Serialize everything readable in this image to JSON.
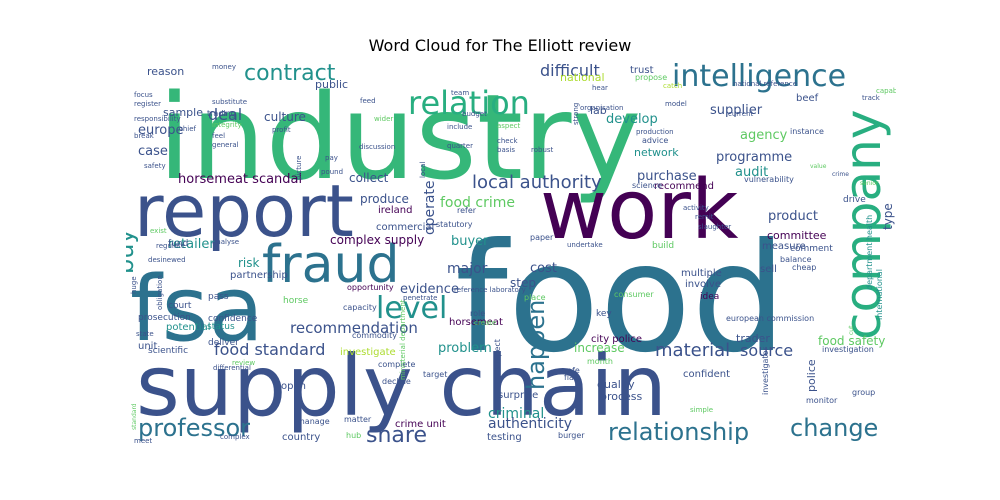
{
  "chart_data": {
    "type": "wordcloud",
    "title": "Word Cloud for The Elliott review",
    "palette": [
      "#440154",
      "#3b528b",
      "#2c728e",
      "#21918c",
      "#28ae80",
      "#5ec962",
      "#addc30",
      "#fde725"
    ],
    "words": [
      {
        "text": "industry",
        "color": "#35b779"
      },
      {
        "text": "food",
        "color": "#2c728e"
      },
      {
        "text": "supply chain",
        "color": "#3b528b"
      },
      {
        "text": "report",
        "color": "#3b528b"
      },
      {
        "text": "fsa",
        "color": "#2c728e"
      },
      {
        "text": "work",
        "color": "#440154"
      },
      {
        "text": "company",
        "color": "#28ae80"
      },
      {
        "text": "fraud",
        "color": "#2c728e"
      },
      {
        "text": "intelligence",
        "color": "#2c728e"
      },
      {
        "text": "relation",
        "color": "#28ae80"
      },
      {
        "text": "contract",
        "color": "#21918c"
      },
      {
        "text": "level",
        "color": "#21918c"
      },
      {
        "text": "happen",
        "color": "#2c728e"
      },
      {
        "text": "buy",
        "color": "#21918c"
      },
      {
        "text": "relationship",
        "color": "#2c728e"
      },
      {
        "text": "change",
        "color": "#2c728e"
      },
      {
        "text": "professor",
        "color": "#2c728e"
      },
      {
        "text": "share",
        "color": "#3b528b"
      },
      {
        "text": "local authority",
        "color": "#3b528b"
      },
      {
        "text": "food crime",
        "color": "#5ec962"
      },
      {
        "text": "material",
        "color": "#3b528b"
      },
      {
        "text": "food standard",
        "color": "#3b528b"
      },
      {
        "text": "criminal",
        "color": "#21918c"
      },
      {
        "text": "recommendation",
        "color": "#3b528b"
      },
      {
        "text": "authenticity",
        "color": "#3b528b"
      },
      {
        "text": "source",
        "color": "#3b528b"
      },
      {
        "text": "deal",
        "color": "#3b528b"
      },
      {
        "text": "difficult",
        "color": "#3b528b"
      },
      {
        "text": "europe",
        "color": "#3b528b"
      },
      {
        "text": "case",
        "color": "#3b528b"
      },
      {
        "text": "retailer",
        "color": "#21918c"
      },
      {
        "text": "supplier",
        "color": "#3b528b"
      },
      {
        "text": "agency",
        "color": "#5ec962"
      },
      {
        "text": "audit",
        "color": "#21918c"
      },
      {
        "text": "programme",
        "color": "#3b528b"
      },
      {
        "text": "develop",
        "color": "#21918c"
      },
      {
        "text": "buyer",
        "color": "#21918c"
      },
      {
        "text": "operate",
        "color": "#3b528b"
      },
      {
        "text": "purchase",
        "color": "#3b528b"
      },
      {
        "text": "product",
        "color": "#3b528b"
      },
      {
        "text": "problem",
        "color": "#21918c"
      },
      {
        "text": "evidence",
        "color": "#3b528b"
      },
      {
        "text": "increase",
        "color": "#5ec962"
      },
      {
        "text": "food safety",
        "color": "#5ec962"
      },
      {
        "text": "cost",
        "color": "#3b528b"
      },
      {
        "text": "major",
        "color": "#3b528b"
      },
      {
        "text": "risk",
        "color": "#21918c"
      },
      {
        "text": "step",
        "color": "#3b528b"
      },
      {
        "text": "horsemeat scandal",
        "color": "#440154"
      },
      {
        "text": "complex supply",
        "color": "#440154"
      },
      {
        "text": "produce",
        "color": "#3b528b"
      },
      {
        "text": "collect",
        "color": "#3b528b"
      },
      {
        "text": "culture",
        "color": "#3b528b"
      },
      {
        "text": "sample",
        "color": "#3b528b"
      },
      {
        "text": "lab",
        "color": "#3b528b"
      },
      {
        "text": "reason",
        "color": "#3b528b"
      },
      {
        "text": "public",
        "color": "#3b528b"
      },
      {
        "text": "national",
        "color": "#addc30"
      },
      {
        "text": "trust",
        "color": "#3b528b"
      },
      {
        "text": "beef",
        "color": "#3b528b"
      },
      {
        "text": "type",
        "color": "#3b528b"
      },
      {
        "text": "committee",
        "color": "#440154"
      },
      {
        "text": "quality",
        "color": "#3b528b"
      },
      {
        "text": "process",
        "color": "#3b528b"
      },
      {
        "text": "police",
        "color": "#3b528b"
      },
      {
        "text": "unit",
        "color": "#3b528b"
      },
      {
        "text": "country",
        "color": "#3b528b"
      },
      {
        "text": "testing",
        "color": "#3b528b"
      },
      {
        "text": "crime unit",
        "color": "#440154"
      },
      {
        "text": "city police",
        "color": "#440154"
      },
      {
        "text": "trader",
        "color": "#3b528b"
      },
      {
        "text": "network",
        "color": "#21918c"
      },
      {
        "text": "investigate",
        "color": "#addc30"
      },
      {
        "text": "partnership",
        "color": "#3b528b"
      },
      {
        "text": "potential",
        "color": "#21918c"
      },
      {
        "text": "horsemeat",
        "color": "#440154"
      },
      {
        "text": "surprise",
        "color": "#3b528b"
      },
      {
        "text": "multiple",
        "color": "#3b528b"
      },
      {
        "text": "involve",
        "color": "#3b528b"
      },
      {
        "text": "measure",
        "color": "#3b528b"
      },
      {
        "text": "sell",
        "color": "#3b528b"
      },
      {
        "text": "open",
        "color": "#3b528b"
      },
      {
        "text": "confident",
        "color": "#3b528b"
      },
      {
        "text": "recommend",
        "color": "#440154"
      },
      {
        "text": "ireland",
        "color": "#440154"
      },
      {
        "text": "commercial",
        "color": "#3b528b"
      },
      {
        "text": "fund",
        "color": "#3b528b"
      },
      {
        "text": "pass",
        "color": "#3b528b"
      },
      {
        "text": "horse",
        "color": "#5ec962"
      },
      {
        "text": "court",
        "color": "#3b528b"
      },
      {
        "text": "confidence",
        "color": "#3b528b"
      },
      {
        "text": "status",
        "color": "#21918c"
      },
      {
        "text": "prosecution",
        "color": "#3b528b"
      },
      {
        "text": "deliver",
        "color": "#3b528b"
      },
      {
        "text": "scientific",
        "color": "#3b528b"
      },
      {
        "text": "key",
        "color": "#3b528b"
      },
      {
        "text": "idea",
        "color": "#440154"
      },
      {
        "text": "build",
        "color": "#5ec962"
      },
      {
        "text": "comment",
        "color": "#3b528b"
      },
      {
        "text": "drive",
        "color": "#3b528b"
      },
      {
        "text": "commodity",
        "color": "#3b528b"
      },
      {
        "text": "opportunity",
        "color": "#440154"
      },
      {
        "text": "capacity",
        "color": "#3b528b"
      },
      {
        "text": "role",
        "color": "#3b528b"
      },
      {
        "text": "place",
        "color": "#5ec962"
      },
      {
        "text": "paper",
        "color": "#3b528b"
      },
      {
        "text": "statutory",
        "color": "#3b528b"
      },
      {
        "text": "refer",
        "color": "#3b528b"
      },
      {
        "text": "flag",
        "color": "#3b528b"
      },
      {
        "text": "safe",
        "color": "#3b528b"
      },
      {
        "text": "month",
        "color": "#5ec962"
      },
      {
        "text": "target",
        "color": "#3b528b"
      },
      {
        "text": "complete",
        "color": "#3b528b"
      },
      {
        "text": "decline",
        "color": "#3b528b"
      },
      {
        "text": "manage",
        "color": "#3b528b"
      },
      {
        "text": "matter",
        "color": "#3b528b"
      },
      {
        "text": "hub",
        "color": "#5ec962"
      },
      {
        "text": "burger",
        "color": "#3b528b"
      },
      {
        "text": "consumer",
        "color": "#5ec962"
      },
      {
        "text": "european commission",
        "color": "#3b528b"
      },
      {
        "text": "balance",
        "color": "#3b528b"
      },
      {
        "text": "cheap",
        "color": "#3b528b"
      },
      {
        "text": "investigation",
        "color": "#3b528b"
      },
      {
        "text": "monitor",
        "color": "#3b528b"
      },
      {
        "text": "group",
        "color": "#3b528b"
      },
      {
        "text": "simple",
        "color": "#5ec962"
      },
      {
        "text": "investigator",
        "color": "#3b528b"
      },
      {
        "text": "international",
        "color": "#21918c"
      },
      {
        "text": "department health",
        "color": "#21918c"
      },
      {
        "text": "slaughter",
        "color": "#3b528b"
      },
      {
        "text": "remit",
        "color": "#3b528b"
      },
      {
        "text": "activity",
        "color": "#3b528b"
      },
      {
        "text": "undertake",
        "color": "#3b528b"
      },
      {
        "text": "science",
        "color": "#3b528b"
      },
      {
        "text": "vulnerability",
        "color": "#3b528b"
      },
      {
        "text": "instance",
        "color": "#3b528b"
      },
      {
        "text": "track",
        "color": "#3b528b"
      },
      {
        "text": "capability",
        "color": "#5ec962"
      },
      {
        "text": "current",
        "color": "#3b528b"
      },
      {
        "text": "model",
        "color": "#3b528b"
      },
      {
        "text": "production",
        "color": "#3b528b"
      },
      {
        "text": "advice",
        "color": "#3b528b"
      },
      {
        "text": "catch",
        "color": "#addc30"
      },
      {
        "text": "national reference",
        "color": "#3b528b"
      },
      {
        "text": "propose",
        "color": "#5ec962"
      },
      {
        "text": "hear",
        "color": "#3b528b"
      },
      {
        "text": "organisation",
        "color": "#3b528b"
      },
      {
        "text": "strong",
        "color": "#3b528b"
      },
      {
        "text": "team",
        "color": "#3b528b"
      },
      {
        "text": "budget",
        "color": "#3b528b"
      },
      {
        "text": "include",
        "color": "#3b528b"
      },
      {
        "text": "aspect",
        "color": "#5ec962"
      },
      {
        "text": "check",
        "color": "#3b528b"
      },
      {
        "text": "basis",
        "color": "#3b528b"
      },
      {
        "text": "robust",
        "color": "#3b528b"
      },
      {
        "text": "quarter",
        "color": "#3b528b"
      },
      {
        "text": "local",
        "color": "#3b528b"
      },
      {
        "text": "discussion",
        "color": "#3b528b"
      },
      {
        "text": "wider",
        "color": "#5ec962"
      },
      {
        "text": "pay",
        "color": "#3b528b"
      },
      {
        "text": "pound",
        "color": "#3b528b"
      },
      {
        "text": "picture",
        "color": "#3b528b"
      },
      {
        "text": "profit",
        "color": "#3b528b"
      },
      {
        "text": "feed",
        "color": "#3b528b"
      },
      {
        "text": "money",
        "color": "#3b528b"
      },
      {
        "text": "chief",
        "color": "#3b528b"
      },
      {
        "text": "focus",
        "color": "#3b528b"
      },
      {
        "text": "register",
        "color": "#3b528b"
      },
      {
        "text": "break",
        "color": "#3b528b"
      },
      {
        "text": "responsibility",
        "color": "#3b528b"
      },
      {
        "text": "substitute",
        "color": "#3b528b"
      },
      {
        "text": "trading",
        "color": "#3b528b"
      },
      {
        "text": "integrity",
        "color": "#5ec962"
      },
      {
        "text": "feel",
        "color": "#3b528b"
      },
      {
        "text": "general",
        "color": "#3b528b"
      },
      {
        "text": "safety",
        "color": "#3b528b"
      },
      {
        "text": "exist",
        "color": "#5ec962"
      },
      {
        "text": "regulate",
        "color": "#3b528b"
      },
      {
        "text": "analyse",
        "color": "#3b528b"
      },
      {
        "text": "desinewed",
        "color": "#3b528b"
      },
      {
        "text": "obligation",
        "color": "#3b528b"
      },
      {
        "text": "huge",
        "color": "#3b528b"
      },
      {
        "text": "state",
        "color": "#3b528b"
      },
      {
        "text": "differential",
        "color": "#3b528b"
      },
      {
        "text": "review",
        "color": "#5ec962"
      },
      {
        "text": "meet",
        "color": "#3b528b"
      },
      {
        "text": "complex",
        "color": "#3b528b"
      },
      {
        "text": "standard",
        "color": "#5ec962"
      },
      {
        "text": "ministerial department",
        "color": "#5ec962"
      },
      {
        "text": "suspect",
        "color": "#3b528b"
      },
      {
        "text": "reference laboratory",
        "color": "#3b528b"
      },
      {
        "text": "penetrate",
        "color": "#3b528b"
      },
      {
        "text": "create",
        "color": "#5ec962"
      },
      {
        "text": "cut",
        "color": "#5ec962"
      },
      {
        "text": "crime",
        "color": "#3b528b"
      },
      {
        "text": "value",
        "color": "#5ec962"
      },
      {
        "text": "senior",
        "color": "#5ec962"
      },
      {
        "text": "enforcement",
        "color": "#5ec962"
      }
    ]
  }
}
